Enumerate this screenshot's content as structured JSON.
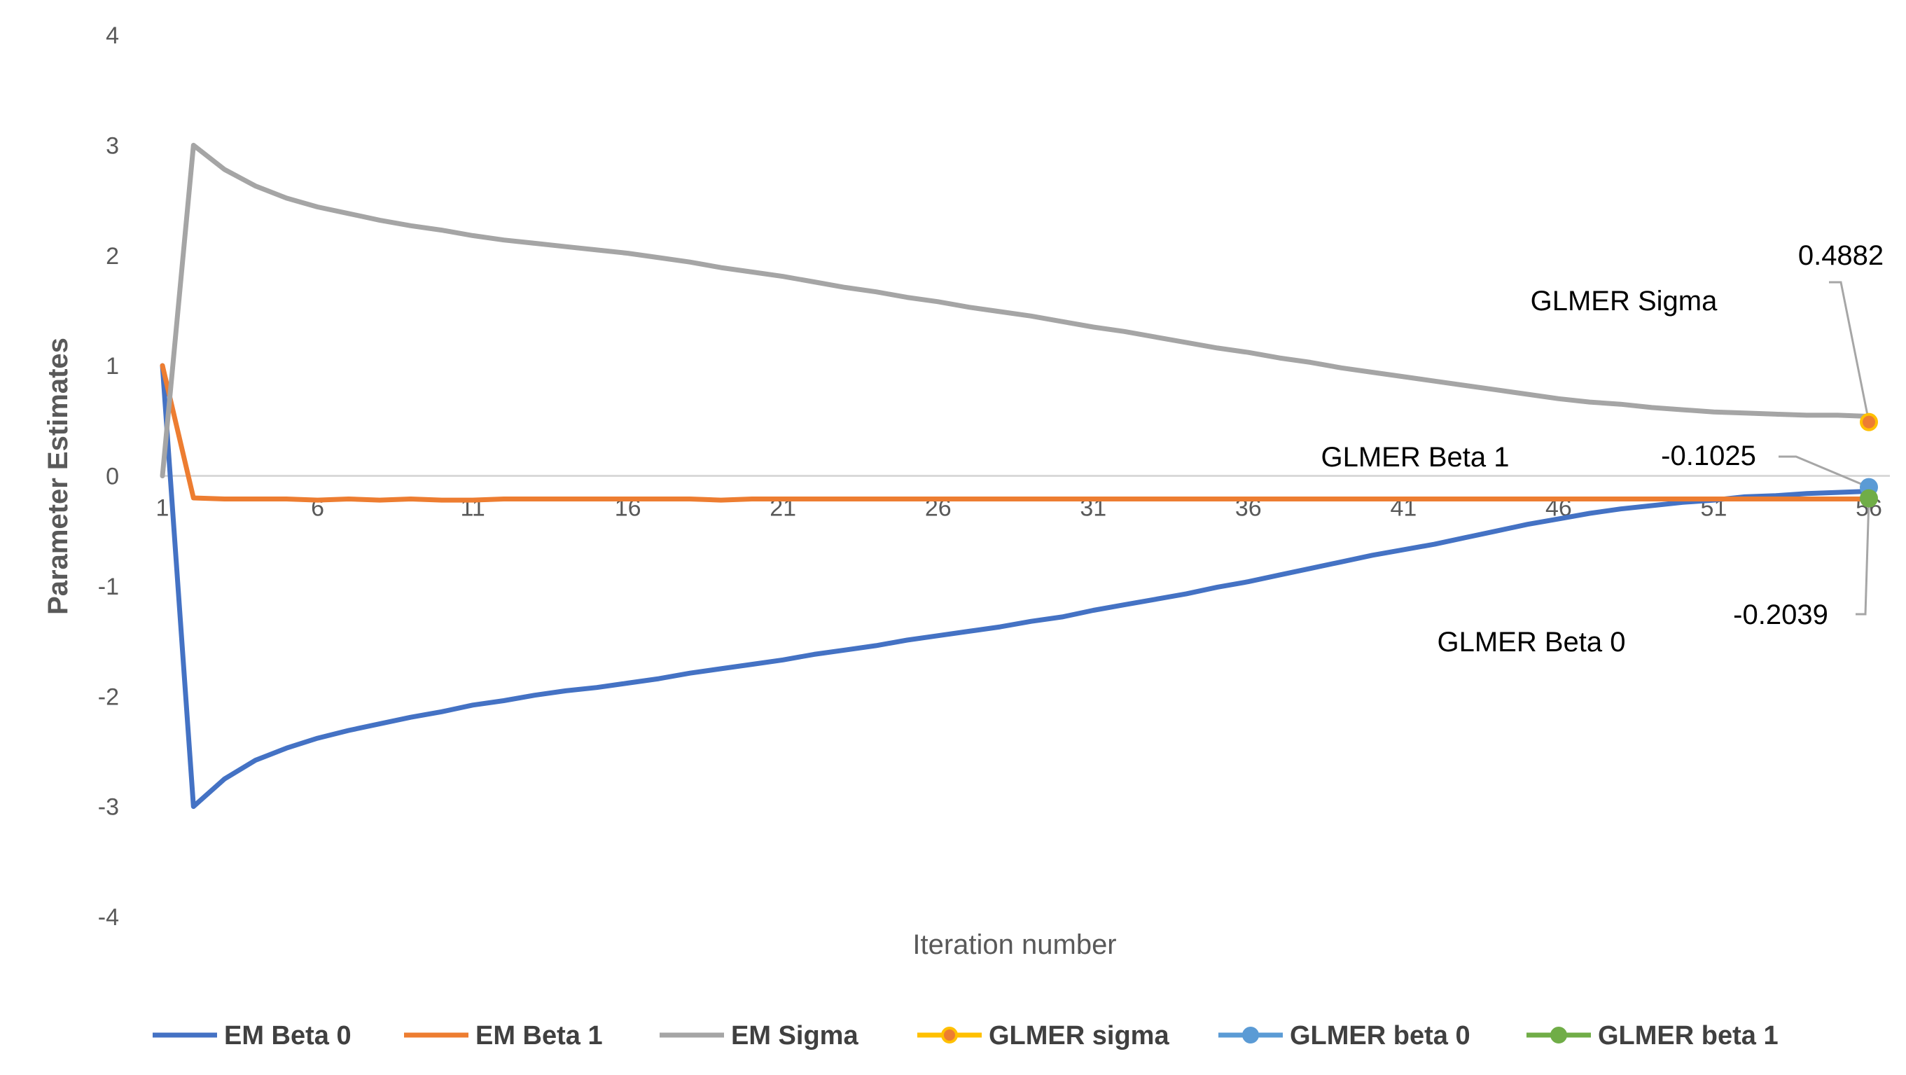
{
  "chart_data": {
    "type": "line",
    "xlabel": "Iteration number",
    "ylabel": "Parameter Estimates",
    "ylim": [
      -4,
      4
    ],
    "xlim": [
      1,
      56
    ],
    "x_ticks": [
      "1",
      "6",
      "11",
      "16",
      "21",
      "26",
      "31",
      "36",
      "41",
      "46",
      "51",
      "56"
    ],
    "y_ticks": [
      "-4",
      "-3",
      "-2",
      "-1",
      "0",
      "1",
      "2",
      "3",
      "4"
    ],
    "grid": false,
    "legend_position": "bottom",
    "series": [
      {
        "name": "EM Beta 0",
        "color": "#4472C4",
        "x": [
          1,
          2,
          3,
          4,
          5,
          6,
          7,
          8,
          9,
          10,
          11,
          12,
          13,
          14,
          15,
          16,
          17,
          18,
          19,
          20,
          21,
          22,
          23,
          24,
          25,
          26,
          27,
          28,
          29,
          30,
          31,
          32,
          33,
          34,
          35,
          36,
          37,
          38,
          39,
          40,
          41,
          42,
          43,
          44,
          45,
          46,
          47,
          48,
          49,
          50,
          51,
          52,
          53,
          54,
          55,
          56
        ],
        "values": [
          1,
          -3,
          -2.75,
          -2.58,
          -2.47,
          -2.38,
          -2.31,
          -2.25,
          -2.19,
          -2.14,
          -2.08,
          -2.04,
          -1.99,
          -1.95,
          -1.92,
          -1.88,
          -1.84,
          -1.79,
          -1.75,
          -1.71,
          -1.67,
          -1.62,
          -1.58,
          -1.54,
          -1.49,
          -1.45,
          -1.41,
          -1.37,
          -1.32,
          -1.28,
          -1.22,
          -1.17,
          -1.12,
          -1.07,
          -1.01,
          -0.96,
          -0.9,
          -0.84,
          -0.78,
          -0.72,
          -0.67,
          -0.62,
          -0.56,
          -0.5,
          -0.44,
          -0.39,
          -0.34,
          -0.3,
          -0.27,
          -0.24,
          -0.22,
          -0.19,
          -0.18,
          -0.16,
          -0.15,
          -0.14
        ]
      },
      {
        "name": "EM Beta 1",
        "color": "#ED7D31",
        "x": [
          1,
          2,
          3,
          4,
          5,
          6,
          7,
          8,
          9,
          10,
          11,
          12,
          13,
          14,
          15,
          16,
          17,
          18,
          19,
          20,
          21,
          22,
          23,
          24,
          25,
          26,
          27,
          28,
          29,
          30,
          31,
          32,
          33,
          34,
          35,
          36,
          37,
          38,
          39,
          40,
          41,
          42,
          43,
          44,
          45,
          46,
          47,
          48,
          49,
          50,
          51,
          52,
          53,
          54,
          55,
          56
        ],
        "values": [
          1,
          -0.2,
          -0.21,
          -0.21,
          -0.21,
          -0.22,
          -0.21,
          -0.22,
          -0.21,
          -0.22,
          -0.22,
          -0.21,
          -0.21,
          -0.21,
          -0.21,
          -0.21,
          -0.21,
          -0.21,
          -0.22,
          -0.21,
          -0.21,
          -0.21,
          -0.21,
          -0.21,
          -0.21,
          -0.21,
          -0.21,
          -0.21,
          -0.21,
          -0.21,
          -0.21,
          -0.21,
          -0.21,
          -0.21,
          -0.21,
          -0.21,
          -0.21,
          -0.21,
          -0.21,
          -0.21,
          -0.21,
          -0.21,
          -0.21,
          -0.21,
          -0.21,
          -0.21,
          -0.21,
          -0.21,
          -0.21,
          -0.21,
          -0.21,
          -0.21,
          -0.21,
          -0.21,
          -0.21,
          -0.21
        ]
      },
      {
        "name": "EM Sigma",
        "color": "#A5A5A5",
        "x": [
          1,
          2,
          3,
          4,
          5,
          6,
          7,
          8,
          9,
          10,
          11,
          12,
          13,
          14,
          15,
          16,
          17,
          18,
          19,
          20,
          21,
          22,
          23,
          24,
          25,
          26,
          27,
          28,
          29,
          30,
          31,
          32,
          33,
          34,
          35,
          36,
          37,
          38,
          39,
          40,
          41,
          42,
          43,
          44,
          45,
          46,
          47,
          48,
          49,
          50,
          51,
          52,
          53,
          54,
          55,
          56
        ],
        "values": [
          0,
          3,
          2.78,
          2.63,
          2.52,
          2.44,
          2.38,
          2.32,
          2.27,
          2.23,
          2.18,
          2.14,
          2.11,
          2.08,
          2.05,
          2.02,
          1.98,
          1.94,
          1.89,
          1.85,
          1.81,
          1.76,
          1.71,
          1.67,
          1.62,
          1.58,
          1.53,
          1.49,
          1.45,
          1.4,
          1.35,
          1.31,
          1.26,
          1.21,
          1.16,
          1.12,
          1.07,
          1.03,
          0.98,
          0.94,
          0.9,
          0.86,
          0.82,
          0.78,
          0.74,
          0.7,
          0.67,
          0.65,
          0.62,
          0.6,
          0.58,
          0.57,
          0.56,
          0.55,
          0.55,
          0.54
        ]
      },
      {
        "name": "GLMER sigma",
        "color": "#FFC000",
        "marker_fill": "#ED7D31",
        "x": [
          56
        ],
        "values": [
          0.4882
        ]
      },
      {
        "name": "GLMER beta 0",
        "color": "#5B9BD5",
        "marker_fill": "#5B9BD5",
        "x": [
          56
        ],
        "values": [
          -0.1025
        ]
      },
      {
        "name": "GLMER beta 1",
        "color": "#70AD47",
        "marker_fill": "#70AD47",
        "x": [
          56
        ],
        "values": [
          -0.2039
        ]
      }
    ],
    "annotations": [
      {
        "text": "GLMER Sigma"
      },
      {
        "text": "GLMER Beta 1"
      },
      {
        "text": "GLMER Beta 0"
      },
      {
        "text": "0.4882"
      },
      {
        "text": "-0.1025"
      },
      {
        "text": "-0.2039"
      }
    ]
  }
}
